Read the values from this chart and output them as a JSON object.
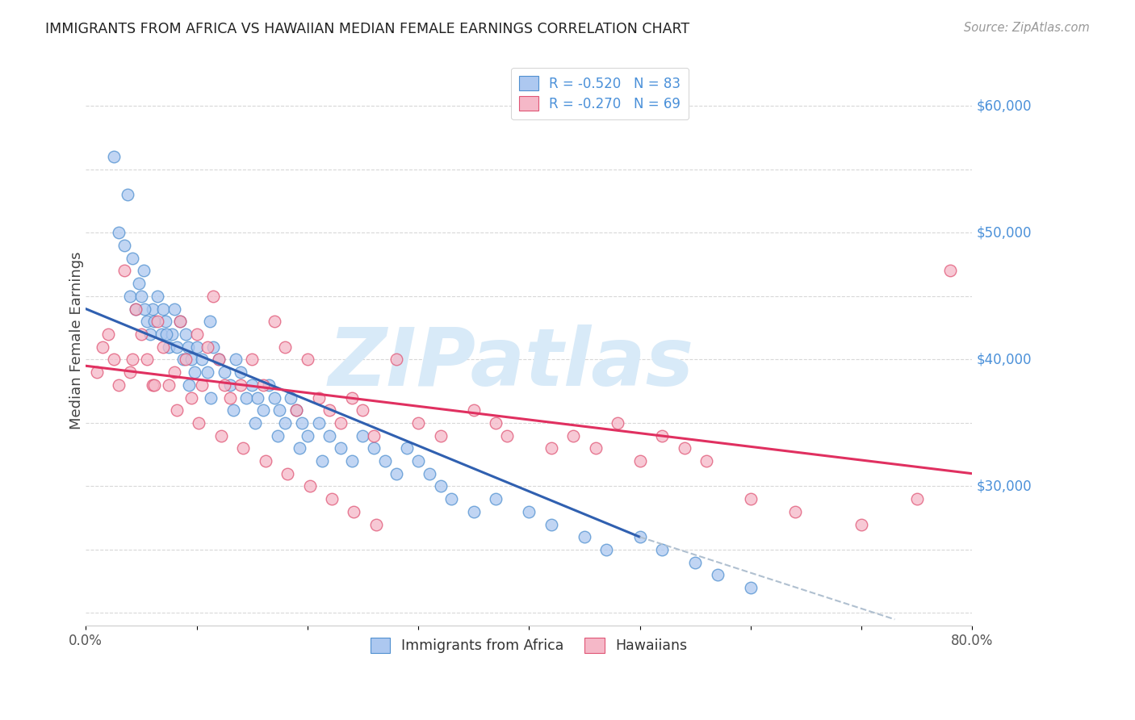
{
  "title": "IMMIGRANTS FROM AFRICA VS HAWAIIAN MEDIAN FEMALE EARNINGS CORRELATION CHART",
  "source": "Source: ZipAtlas.com",
  "ylabel": "Median Female Earnings",
  "xlim": [
    0.0,
    80.0
  ],
  "ylim": [
    19000,
    64000
  ],
  "blue_fill": "#adc8f0",
  "pink_fill": "#f5b8c8",
  "blue_edge": "#5090d0",
  "pink_edge": "#e05575",
  "blue_line": "#3060b0",
  "pink_line": "#e03060",
  "dashed_color": "#b0c0d0",
  "legend_label_color": "#4a90d9",
  "axis_tick_color": "#4a90d9",
  "grid_color": "#d8d8d8",
  "title_color": "#222222",
  "source_color": "#999999",
  "ylabel_color": "#444444",
  "background": "#ffffff",
  "watermark": "ZIPatlas",
  "watermark_color": "#d8eaf8",
  "blue_x": [
    2.5,
    3.0,
    3.5,
    4.0,
    4.2,
    4.5,
    4.8,
    5.0,
    5.2,
    5.5,
    5.8,
    6.0,
    6.2,
    6.5,
    6.8,
    7.0,
    7.2,
    7.5,
    7.8,
    8.0,
    8.2,
    8.5,
    8.8,
    9.0,
    9.2,
    9.5,
    9.8,
    10.0,
    10.5,
    11.0,
    11.2,
    11.5,
    12.0,
    12.5,
    13.0,
    13.5,
    14.0,
    14.5,
    15.0,
    15.5,
    16.0,
    16.5,
    17.0,
    17.5,
    18.0,
    18.5,
    19.0,
    19.5,
    20.0,
    21.0,
    22.0,
    23.0,
    24.0,
    25.0,
    26.0,
    27.0,
    28.0,
    29.0,
    30.0,
    31.0,
    32.0,
    33.0,
    35.0,
    37.0,
    40.0,
    42.0,
    45.0,
    47.0,
    50.0,
    52.0,
    55.0,
    57.0,
    60.0,
    3.8,
    5.3,
    7.3,
    9.3,
    11.3,
    13.3,
    15.3,
    17.3,
    19.3,
    21.3
  ],
  "blue_y": [
    56000,
    50000,
    49000,
    45000,
    48000,
    44000,
    46000,
    45000,
    47000,
    43000,
    42000,
    44000,
    43000,
    45000,
    42000,
    44000,
    43000,
    41000,
    42000,
    44000,
    41000,
    43000,
    40000,
    42000,
    41000,
    40000,
    39000,
    41000,
    40000,
    39000,
    43000,
    41000,
    40000,
    39000,
    38000,
    40000,
    39000,
    37000,
    38000,
    37000,
    36000,
    38000,
    37000,
    36000,
    35000,
    37000,
    36000,
    35000,
    34000,
    35000,
    34000,
    33000,
    32000,
    34000,
    33000,
    32000,
    31000,
    33000,
    32000,
    31000,
    30000,
    29000,
    28000,
    29000,
    28000,
    27000,
    26000,
    25000,
    26000,
    25000,
    24000,
    23000,
    22000,
    53000,
    44000,
    42000,
    38000,
    37000,
    36000,
    35000,
    34000,
    33000,
    32000
  ],
  "pink_x": [
    1.0,
    1.5,
    2.0,
    2.5,
    3.0,
    3.5,
    4.0,
    4.5,
    5.0,
    5.5,
    6.0,
    6.5,
    7.0,
    7.5,
    8.0,
    8.5,
    9.0,
    9.5,
    10.0,
    10.5,
    11.0,
    11.5,
    12.0,
    12.5,
    13.0,
    14.0,
    15.0,
    16.0,
    17.0,
    18.0,
    19.0,
    20.0,
    21.0,
    22.0,
    23.0,
    24.0,
    25.0,
    26.0,
    28.0,
    30.0,
    32.0,
    35.0,
    37.0,
    38.0,
    42.0,
    44.0,
    46.0,
    48.0,
    50.0,
    52.0,
    54.0,
    56.0,
    60.0,
    64.0,
    70.0,
    75.0,
    78.0,
    4.2,
    6.2,
    8.2,
    10.2,
    12.2,
    14.2,
    16.2,
    18.2,
    20.2,
    22.2,
    24.2,
    26.2
  ],
  "pink_y": [
    39000,
    41000,
    42000,
    40000,
    38000,
    47000,
    39000,
    44000,
    42000,
    40000,
    38000,
    43000,
    41000,
    38000,
    39000,
    43000,
    40000,
    37000,
    42000,
    38000,
    41000,
    45000,
    40000,
    38000,
    37000,
    38000,
    40000,
    38000,
    43000,
    41000,
    36000,
    40000,
    37000,
    36000,
    35000,
    37000,
    36000,
    34000,
    40000,
    35000,
    34000,
    36000,
    35000,
    34000,
    33000,
    34000,
    33000,
    35000,
    32000,
    34000,
    33000,
    32000,
    29000,
    28000,
    27000,
    29000,
    47000,
    40000,
    38000,
    36000,
    35000,
    34000,
    33000,
    32000,
    31000,
    30000,
    29000,
    28000,
    27000
  ],
  "blue_line_x0": 0,
  "blue_line_x1": 50,
  "blue_line_y0": 44000,
  "blue_line_y1": 26000,
  "blue_dash_x0": 50,
  "blue_dash_x1": 73,
  "blue_dash_y0": 26000,
  "blue_dash_y1": 19500,
  "pink_line_x0": 0,
  "pink_line_x1": 80,
  "pink_line_y0": 39500,
  "pink_line_y1": 31000,
  "right_labels": {
    "60000": "$60,000",
    "50000": "$50,000",
    "40000": "$40,000",
    "30000": "$30,000"
  }
}
